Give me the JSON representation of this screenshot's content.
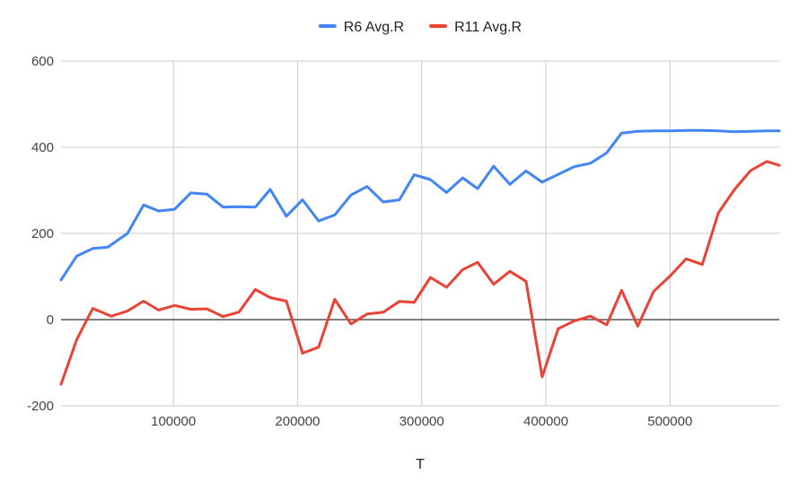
{
  "chart_data": {
    "type": "line",
    "title": "",
    "xlabel": "T",
    "ylabel": "",
    "xlim": [
      9500,
      588000
    ],
    "ylim": [
      -200,
      600
    ],
    "x_ticks": [
      100000,
      200000,
      300000,
      400000,
      500000
    ],
    "y_ticks": [
      -200,
      0,
      200,
      400,
      600
    ],
    "grid": true,
    "legend_position": "top",
    "series": [
      {
        "name": "R6 Avg.R",
        "color": "#4285f4",
        "points": [
          [
            9500,
            92
          ],
          [
            22000,
            147
          ],
          [
            35000,
            165
          ],
          [
            47000,
            168
          ],
          [
            63000,
            200
          ],
          [
            76000,
            266
          ],
          [
            88000,
            252
          ],
          [
            101000,
            256
          ],
          [
            114000,
            294
          ],
          [
            127000,
            291
          ],
          [
            140000,
            261
          ],
          [
            153000,
            262
          ],
          [
            166000,
            261
          ],
          [
            178000,
            302
          ],
          [
            191000,
            240
          ],
          [
            204000,
            278
          ],
          [
            217000,
            229
          ],
          [
            230000,
            243
          ],
          [
            243000,
            289
          ],
          [
            256000,
            309
          ],
          [
            269000,
            273
          ],
          [
            282000,
            278
          ],
          [
            294000,
            336
          ],
          [
            307000,
            325
          ],
          [
            320000,
            295
          ],
          [
            333000,
            329
          ],
          [
            345000,
            304
          ],
          [
            358000,
            356
          ],
          [
            371000,
            314
          ],
          [
            384000,
            345
          ],
          [
            397000,
            319
          ],
          [
            410000,
            337
          ],
          [
            423000,
            355
          ],
          [
            436000,
            363
          ],
          [
            449000,
            387
          ],
          [
            461000,
            433
          ],
          [
            474000,
            437
          ],
          [
            487000,
            438
          ],
          [
            500000,
            438
          ],
          [
            513000,
            439
          ],
          [
            526000,
            439
          ],
          [
            539000,
            438
          ],
          [
            552000,
            436
          ],
          [
            565000,
            437
          ],
          [
            578000,
            438
          ],
          [
            588000,
            438
          ]
        ]
      },
      {
        "name": "R11 Avg.R",
        "color": "#ea4335",
        "points": [
          [
            9500,
            -150
          ],
          [
            22000,
            -47
          ],
          [
            35000,
            26
          ],
          [
            50000,
            8
          ],
          [
            63000,
            20
          ],
          [
            76000,
            43
          ],
          [
            88000,
            22
          ],
          [
            101000,
            33
          ],
          [
            114000,
            24
          ],
          [
            127000,
            25
          ],
          [
            140000,
            7
          ],
          [
            153000,
            18
          ],
          [
            166000,
            70
          ],
          [
            178000,
            51
          ],
          [
            191000,
            43
          ],
          [
            204000,
            -78
          ],
          [
            217000,
            -64
          ],
          [
            230000,
            47
          ],
          [
            243000,
            -10
          ],
          [
            256000,
            13
          ],
          [
            269000,
            17
          ],
          [
            282000,
            42
          ],
          [
            294000,
            40
          ],
          [
            307000,
            98
          ],
          [
            320000,
            75
          ],
          [
            333000,
            116
          ],
          [
            345000,
            133
          ],
          [
            358000,
            82
          ],
          [
            371000,
            112
          ],
          [
            384000,
            89
          ],
          [
            397000,
            -133
          ],
          [
            410000,
            -21
          ],
          [
            423000,
            -3
          ],
          [
            436000,
            8
          ],
          [
            449000,
            -12
          ],
          [
            461000,
            68
          ],
          [
            474000,
            -15
          ],
          [
            487000,
            66
          ],
          [
            500000,
            101
          ],
          [
            513000,
            141
          ],
          [
            526000,
            128
          ],
          [
            539000,
            248
          ],
          [
            552000,
            302
          ],
          [
            565000,
            346
          ],
          [
            578000,
            367
          ],
          [
            588000,
            358
          ]
        ]
      }
    ]
  }
}
